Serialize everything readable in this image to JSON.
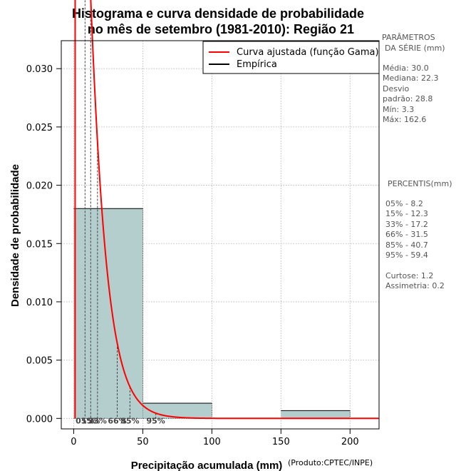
{
  "chart_data": {
    "type": "histogram",
    "title_line1": "Histograma e curva densidade de probabilidade",
    "title_line2": "no mês de setembro (1981-2010): Região 21",
    "xlabel": "Precipitação acumulada (mm)",
    "ylabel": "Densidade de probabilidade",
    "credit": "(Produto:CPTEC/INPE)",
    "xlim": [
      -9,
      221
    ],
    "ylim": [
      -0.0009,
      0.0324
    ],
    "x_ticks": [
      0,
      50,
      100,
      150,
      200
    ],
    "x_tick_labels": [
      "0",
      "50",
      "100",
      "150",
      "200"
    ],
    "y_ticks": [
      0.0,
      0.005,
      0.01,
      0.015,
      0.02,
      0.025,
      0.03
    ],
    "y_tick_labels": [
      "0.000",
      "0.005",
      "0.010",
      "0.015",
      "0.020",
      "0.025",
      "0.030"
    ],
    "grid": true,
    "histogram": {
      "bins": [
        [
          0,
          50
        ],
        [
          50,
          100
        ],
        [
          100,
          150
        ],
        [
          150,
          200
        ]
      ],
      "densities": [
        0.018,
        0.0013,
        0.0,
        0.00067
      ],
      "fill_color": "#b4cdcd"
    },
    "curve": {
      "name": "Curva ajustada (função Gama)",
      "color": "#ff0000",
      "shape": 1.2,
      "scale": 10.0,
      "location": 1.0,
      "x_max": 221
    },
    "empirica": {
      "name": "Empírica",
      "color": "#000000"
    },
    "legend_position": "top-right",
    "percentiles": [
      {
        "label": "05%",
        "value": 8.2
      },
      {
        "label": "15%",
        "value": 12.3
      },
      {
        "label": "33%",
        "value": 17.2
      },
      {
        "label": "66%",
        "value": 31.5
      },
      {
        "label": "85%",
        "value": 40.7
      },
      {
        "label": "95%",
        "value": 59.4
      }
    ]
  },
  "series_params": {
    "heading_line1": "PARÂMETROS",
    "heading_line2": "DA SÉRIE (mm)",
    "lines": [
      "Média:  30.0",
      "Mediana:  22.3",
      "Desvio",
      "padrão:  28.8",
      "Mín:  3.3",
      "Máx:  162.6"
    ]
  },
  "percentis_panel": {
    "heading": "PERCENTIS(mm)",
    "lines": [
      "05% -   8.2",
      "15% -   12.3",
      "33% -   17.2",
      "66% -   31.5",
      "85% -   40.7",
      "95% -   59.4"
    ],
    "stats": [
      "Curtose:  1.2",
      "Assimetria:  0.2"
    ]
  }
}
